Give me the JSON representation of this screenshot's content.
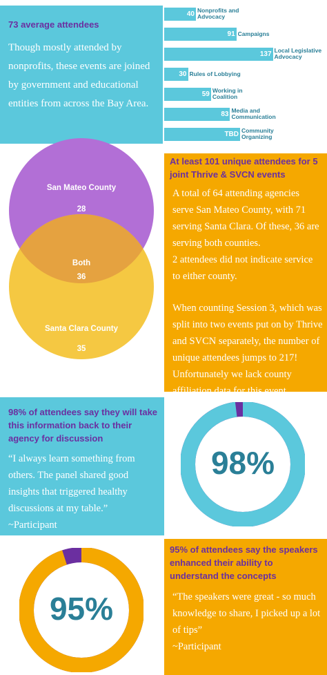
{
  "attendance": {
    "heading": "73 average attendees",
    "body": "Though mostly attended by nonprofits, these events are joined by government and educational entities from across the Bay Area.",
    "bars": {
      "categories": [
        "Nonprofits and Advocacy",
        "Campaigns",
        "Local Legislative Advocacy",
        "Rules of Lobbying",
        "Working in Coalition",
        "Media and Communication",
        "Community Organizing"
      ],
      "values": [
        40,
        91,
        137,
        30,
        59,
        83,
        null
      ],
      "value_labels": [
        null,
        null,
        null,
        null,
        null,
        null,
        "TBD"
      ]
    }
  },
  "venn": {
    "sets": [
      {
        "label": "San Mateo County",
        "value": 28
      },
      {
        "label": "Both",
        "value": 36
      },
      {
        "label": "Santa Clara County",
        "value": 35
      }
    ]
  },
  "unique": {
    "heading": "At least 101 unique attendees for 5 joint Thrive & SVCN events",
    "paragraphs": [
      "A total of 64 attending agencies serve San Mateo County, with 71 serving Santa Clara. Of these, 36 are serving both counties.",
      "2 attendees did not indicate service to either county.",
      "When counting Session 3, which was split into two  events put on by Thrive and SVCN separately, the number of unique attendees jumps to 217!",
      "Unfortunately we lack county affiliation data for this event."
    ]
  },
  "take_back": {
    "heading": "98% of attendees say they will take this information back to their agency for discussion",
    "quote": "“I always learn something from others. The panel shared good insights that triggered healthy discussions at my table.”",
    "attribution": "~Participant",
    "donut": {
      "value": 98,
      "label": "98%"
    }
  },
  "speakers": {
    "heading": "95% of attendees say the speakers enhanced their ability to understand the concepts",
    "quote": "“The speakers were great - so much knowledge to share, I picked up a lot of tips”",
    "attribution": "~Participant",
    "donut": {
      "value": 95,
      "label": "95%"
    }
  }
}
